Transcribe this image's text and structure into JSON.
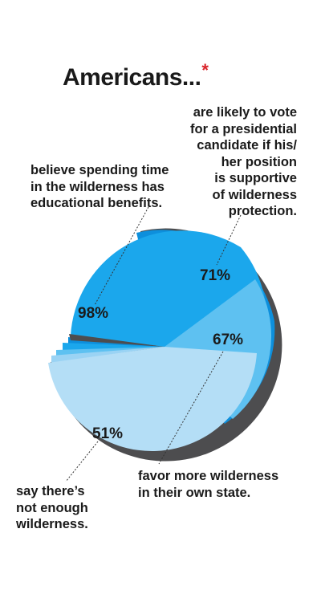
{
  "title": "Americans...",
  "title_mark": "*",
  "colors": {
    "dark_gray": "#4d4d4f",
    "blue_98": "#1ba7ec",
    "blue_71": "#0d8fdc",
    "blue_67": "#5ec1f1",
    "blue_51": "#b4def6",
    "asterisk": "#d9232a"
  },
  "chart_data": {
    "type": "pie",
    "title": "Americans...",
    "slices": [
      {
        "label_lines": [
          "believe spending time",
          "in the wilderness has",
          "educational benefits."
        ],
        "value": 98,
        "value_label": "98%"
      },
      {
        "label_lines": [
          "are likely to vote",
          "for a presidential",
          "candidate if his/",
          "her position",
          "is supportive",
          "of wilderness",
          "protection."
        ],
        "value": 71,
        "value_label": "71%"
      },
      {
        "label_lines": [
          "favor more wilderness",
          "in their own state."
        ],
        "value": 67,
        "value_label": "67%"
      },
      {
        "label_lines": [
          "say there’s",
          "not enough",
          "wilderness."
        ],
        "value": 51,
        "value_label": "51%"
      }
    ]
  }
}
